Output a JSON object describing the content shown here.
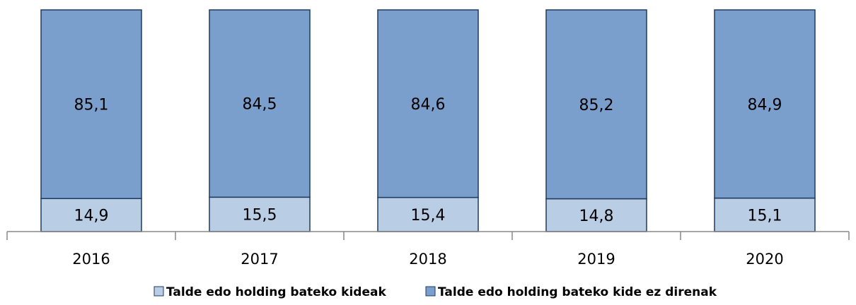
{
  "chart_data": {
    "type": "stacked-bar",
    "categories": [
      "2016",
      "2017",
      "2018",
      "2019",
      "2020"
    ],
    "series": [
      {
        "name": "Talde edo holding bateko kideak",
        "color": "#b9cde5",
        "values": [
          14.9,
          15.5,
          15.4,
          14.8,
          15.1
        ],
        "value_labels": [
          "14,9",
          "15,5",
          "15,4",
          "14,8",
          "15,1"
        ]
      },
      {
        "name": "Talde edo holding bateko kide ez direnak",
        "color": "#7b9fcc",
        "values": [
          85.1,
          84.5,
          84.6,
          85.2,
          84.9
        ],
        "value_labels": [
          "85,1",
          "84,5",
          "84,6",
          "85,2",
          "84,9"
        ]
      }
    ],
    "legend": "bottom"
  }
}
